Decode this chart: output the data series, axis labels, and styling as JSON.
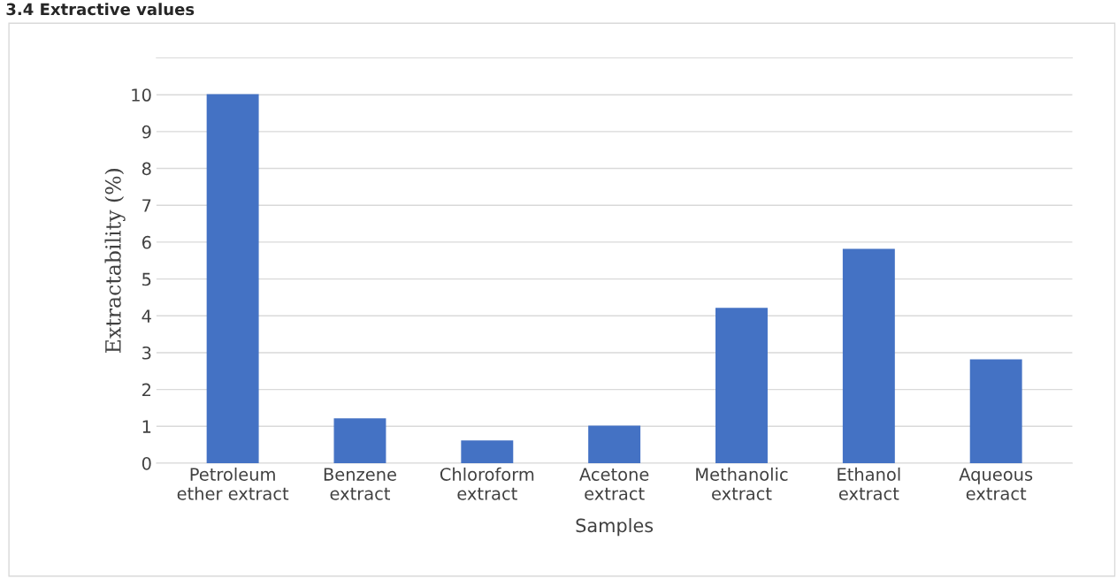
{
  "chart_data": {
    "type": "bar",
    "title": "3.4 Extractive values",
    "xlabel": "Samples",
    "ylabel": "Extractability (%)",
    "categories": [
      "Petroleum\nether extract",
      "Benzene\nextract",
      "Chloroform\nextract",
      "Acetone\nextract",
      "Methanolic\nextract",
      "Ethanol\nextract",
      "Aqueous\nextract"
    ],
    "values": [
      10.0,
      1.2,
      0.6,
      1.0,
      4.2,
      5.8,
      2.8
    ],
    "color": "#4472c4",
    "ylim": [
      0,
      11
    ],
    "yticks": [
      0,
      1,
      2,
      3,
      4,
      5,
      6,
      7,
      8,
      9,
      10
    ],
    "grid": "y",
    "legend": false
  }
}
